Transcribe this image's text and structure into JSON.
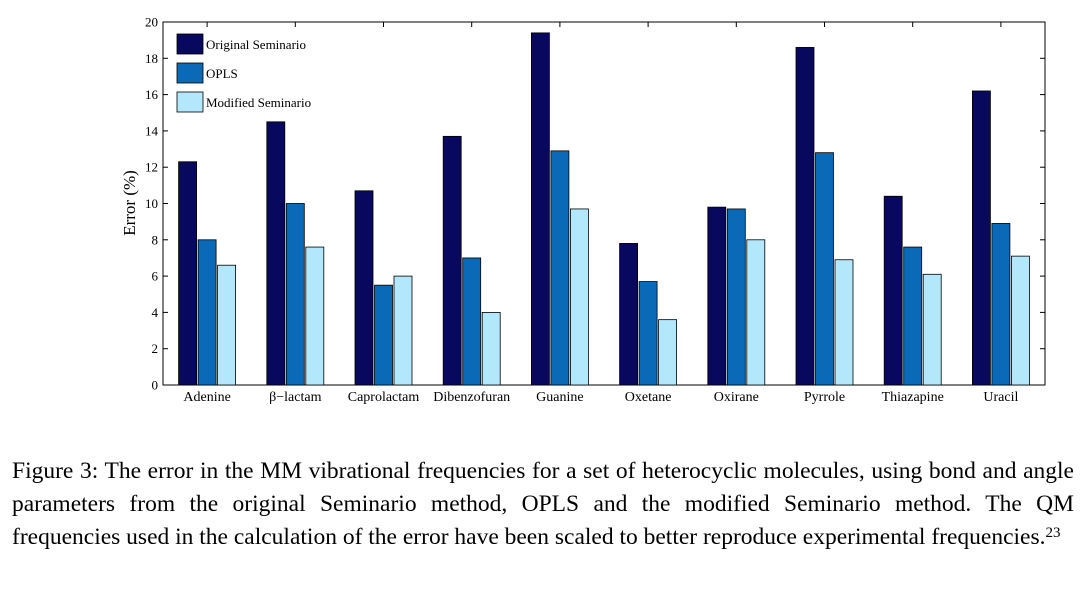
{
  "chart_data": {
    "type": "bar",
    "ylabel": "Error (%)",
    "xlabel": "",
    "ylim": [
      0,
      20
    ],
    "yticks": [
      0,
      2,
      4,
      6,
      8,
      10,
      12,
      14,
      16,
      18,
      20
    ],
    "legend_position": "top-left",
    "grid": false,
    "categories": [
      "Adenine",
      "β−lactam",
      "Caprolactam",
      "Dibenzofuran",
      "Guanine",
      "Oxetane",
      "Oxirane",
      "Pyrrole",
      "Thiazapine",
      "Uracil"
    ],
    "series": [
      {
        "name": "Original Seminario",
        "color": "#07085e",
        "values": [
          12.3,
          14.5,
          10.7,
          13.7,
          19.4,
          7.8,
          9.8,
          18.6,
          10.4,
          16.2
        ]
      },
      {
        "name": "OPLS",
        "color": "#0a6ab8",
        "values": [
          8.0,
          10.0,
          5.5,
          7.0,
          12.9,
          5.7,
          9.7,
          12.8,
          7.6,
          8.9
        ]
      },
      {
        "name": "Modified Seminario",
        "color": "#b3e8fc",
        "values": [
          6.6,
          7.6,
          6.0,
          4.0,
          9.7,
          3.6,
          8.0,
          6.9,
          6.1,
          7.1
        ]
      }
    ]
  },
  "caption": {
    "text": "Figure 3:  The error in the MM vibrational frequencies for a set of heterocyclic molecules, using bond and angle parameters from the original Seminario method, OPLS and the modified Seminario method.  The QM frequencies used in the calculation of the error have been scaled to better reproduce experimental frequencies.",
    "citation": "23"
  }
}
